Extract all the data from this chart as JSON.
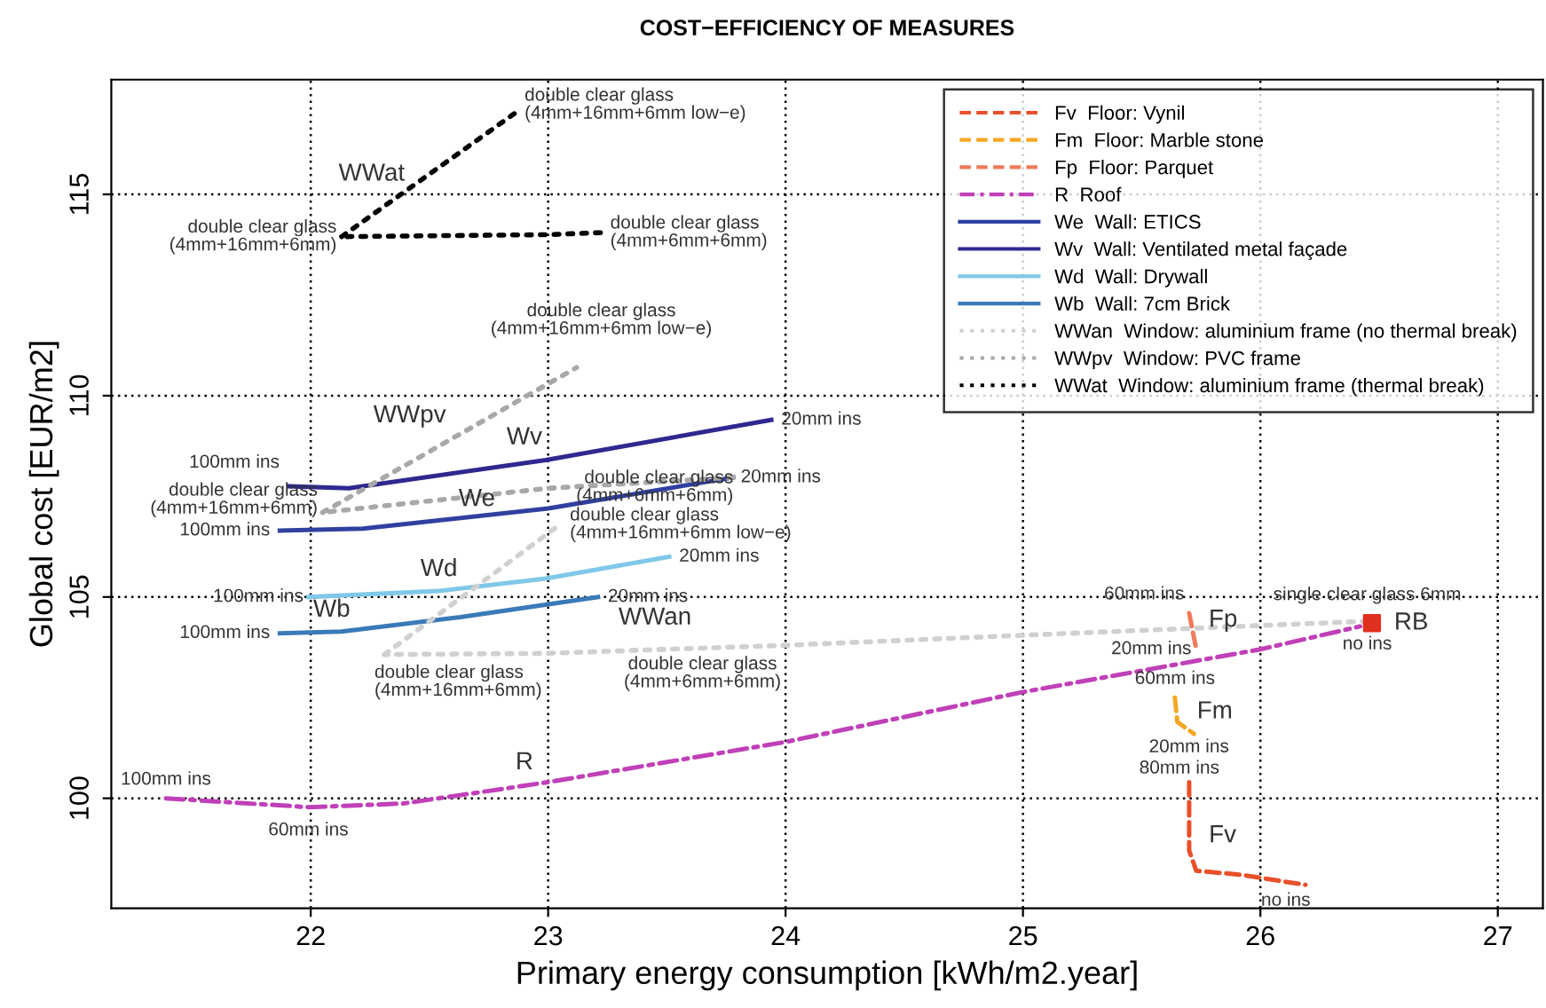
{
  "chart_data": {
    "type": "line",
    "title": "COST−EFFICIENCY OF MEASURES",
    "xlabel": "Primary energy consumption [kWh/m2.year]",
    "ylabel": "Global cost [EUR/m2]",
    "xlim": [
      21.16,
      27.19
    ],
    "ylim": [
      97.27,
      117.85
    ],
    "xticks": [
      22,
      23,
      24,
      25,
      26,
      27
    ],
    "yticks": [
      100,
      105,
      110,
      115
    ],
    "grid": true,
    "legend": "top right",
    "series": [
      {
        "name": "Fv  Floor: Vynil",
        "color": "#e8502a",
        "line_style": "dashed",
        "x": [
          25.7,
          25.7,
          25.73,
          25.92,
          26.19
        ],
        "values": [
          100.4,
          98.7,
          98.2,
          98.1,
          97.85
        ]
      },
      {
        "name": "Fm  Floor: Marble stone",
        "color": "#f5a623",
        "line_style": "dashed",
        "x": [
          25.64,
          25.65,
          25.72
        ],
        "values": [
          102.5,
          101.9,
          101.6
        ]
      },
      {
        "name": "Fp  Floor: Parquet",
        "color": "#f07a5a",
        "line_style": "dashed",
        "x": [
          25.7,
          25.73
        ],
        "values": [
          104.6,
          103.7
        ]
      },
      {
        "name": "R  Roof",
        "color": "#c040b8",
        "line_style": "dashdot",
        "x": [
          21.39,
          21.99,
          22.39,
          23.0,
          24.0,
          25.0,
          26.0,
          26.42
        ],
        "values": [
          100.0,
          99.78,
          99.87,
          100.4,
          101.4,
          102.64,
          103.7,
          104.27
        ]
      },
      {
        "name": "We  Wall: ETICS",
        "color": "#3040a0",
        "line_style": "solid",
        "x": [
          21.87,
          22.22,
          23.0,
          23.78
        ],
        "values": [
          106.65,
          106.7,
          107.2,
          107.97
        ]
      },
      {
        "name": "Wv  Wall: Ventilated metal façade",
        "color": "#302890",
        "line_style": "solid",
        "x": [
          21.91,
          22.16,
          22.99,
          23.94
        ],
        "values": [
          107.75,
          107.7,
          108.4,
          109.4
        ]
      },
      {
        "name": "Wd  Wall: Drywall",
        "color": "#80c8e8",
        "line_style": "solid",
        "x": [
          21.99,
          22.54,
          22.99,
          23.51
        ],
        "values": [
          105.0,
          105.15,
          105.46,
          106.0
        ]
      },
      {
        "name": "Wb  Wall: 7cm Brick",
        "color": "#3a7ab8",
        "line_style": "solid",
        "x": [
          21.87,
          22.13,
          22.63,
          23.21
        ],
        "values": [
          104.1,
          104.14,
          104.5,
          105.0
        ]
      },
      {
        "name": "WWan  Window: aluminium frame (no thermal break)",
        "color": "#d0d0d0",
        "line_style": "dotted",
        "x": [
          26.45,
          25.0,
          24.0,
          22.99,
          22.31
        ],
        "values": [
          104.4,
          104.05,
          103.8,
          103.6,
          103.57
        ]
      },
      {
        "name": "WWpv  Window: PVC frame",
        "color": "#a8a8a8",
        "line_style": "dotted",
        "x": [
          23.78,
          23.0,
          22.05
        ],
        "values": [
          107.97,
          107.7,
          107.1
        ]
      },
      {
        "name": "WWat  Window: aluminium frame (thermal break)",
        "color": "#000000",
        "line_style": "dotted",
        "x": [
          23.22,
          23.0,
          22.13
        ],
        "values": [
          114.05,
          114.0,
          113.95
        ]
      },
      {
        "color": "#d0d0d0",
        "line_style": "dotted",
        "x": [
          22.31,
          23.05
        ],
        "values": [
          103.57,
          106.8
        ]
      },
      {
        "color": "#a8a8a8",
        "line_style": "dotted",
        "x": [
          22.05,
          23.12
        ],
        "values": [
          107.1,
          110.7
        ]
      },
      {
        "color": "#000000",
        "line_style": "dotted",
        "x": [
          22.13,
          22.88
        ],
        "values": [
          113.95,
          117.1
        ]
      },
      {
        "type": "scatter",
        "marker": "square",
        "color": "#e03020",
        "x": [
          26.47
        ],
        "values": [
          104.35
        ]
      }
    ],
    "annotations": [
      {
        "text": "WWat",
        "x": 22.5,
        "y": 115.5
      },
      {
        "text": "double clear glass\n(4mm+16mm+6mm low−e)",
        "x": 22.88,
        "y": 117.1
      },
      {
        "text": "double clear glass\n(4mm+16mm+6mm)",
        "x": 22.13,
        "y": 113.95
      },
      {
        "text": "double clear glass\n(4mm+6mm+6mm)",
        "x": 23.22,
        "y": 114.05
      },
      {
        "text": "double clear glass\n(4mm+16mm+6mm low−e)",
        "x": 23.12,
        "y": 110.7
      },
      {
        "text": "WWpv",
        "x": 22.5,
        "y": 108.6
      },
      {
        "text": "Wv",
        "x": 22.9,
        "y": 108.3
      },
      {
        "text": "100mm ins",
        "x": 21.91,
        "y": 107.75
      },
      {
        "text": "double clear glass\n(4mm+16mm+6mm)",
        "x": 22.05,
        "y": 107.1
      },
      {
        "text": "We",
        "x": 22.7,
        "y": 106.95
      },
      {
        "text": "double clear glass\n(4mm+6mm+6mm)",
        "x": 23.78,
        "y": 107.97
      },
      {
        "text": "20mm ins",
        "x": 23.94,
        "y": 109.4
      },
      {
        "text": "20mm ins",
        "x": 23.78,
        "y": 107.97
      },
      {
        "text": "100mm ins",
        "x": 21.87,
        "y": 106.65
      },
      {
        "text": "double clear glass\n(4mm+16mm+6mm low−e)",
        "x": 23.05,
        "y": 106.8
      },
      {
        "text": "Wd",
        "x": 22.54,
        "y": 105.15
      },
      {
        "text": "100mm ins",
        "x": 21.99,
        "y": 105.0
      },
      {
        "text": "20mm ins",
        "x": 23.51,
        "y": 106.0
      },
      {
        "text": "Wb",
        "x": 22.13,
        "y": 104.14
      },
      {
        "text": "20mm ins",
        "x": 23.21,
        "y": 105.0
      },
      {
        "text": "100mm ins",
        "x": 21.87,
        "y": 104.1
      },
      {
        "text": "WWan",
        "x": 23.45,
        "y": 103.7
      },
      {
        "text": "double clear glass\n(4mm+16mm+6mm)",
        "x": 22.31,
        "y": 103.57
      },
      {
        "text": "double clear glass\n(4mm+6mm+6mm)",
        "x": 23.65,
        "y": 103.72
      },
      {
        "text": "R",
        "x": 22.9,
        "y": 100.35
      },
      {
        "text": "100mm ins",
        "x": 21.39,
        "y": 100.0
      },
      {
        "text": "60mm ins",
        "x": 21.99,
        "y": 99.78
      },
      {
        "text": "60mm ins",
        "x": 25.7,
        "y": 104.6
      },
      {
        "text": "Fp",
        "x": 25.72,
        "y": 104.3
      },
      {
        "text": "20mm ins",
        "x": 25.73,
        "y": 103.7
      },
      {
        "text": "60mm ins",
        "x": 25.64,
        "y": 102.5
      },
      {
        "text": "Fm",
        "x": 25.65,
        "y": 101.9
      },
      {
        "text": "20mm ins",
        "x": 25.72,
        "y": 101.6
      },
      {
        "text": "80mm ins",
        "x": 25.7,
        "y": 100.4
      },
      {
        "text": "Fv",
        "x": 25.7,
        "y": 98.7
      },
      {
        "text": "no ins",
        "x": 26.19,
        "y": 97.85
      },
      {
        "text": "single clear glass 6mm",
        "x": 26.45,
        "y": 104.4
      },
      {
        "text": "no ins",
        "x": 26.45,
        "y": 104.4
      },
      {
        "text": "RB",
        "x": 26.47,
        "y": 104.35
      }
    ]
  }
}
